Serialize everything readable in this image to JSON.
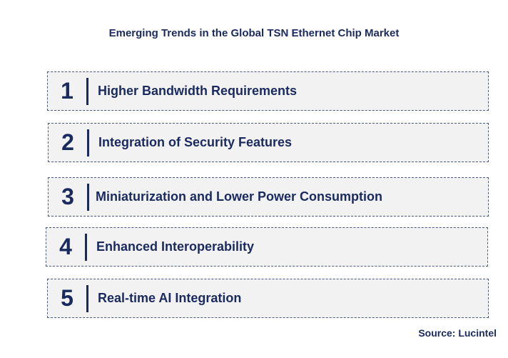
{
  "title": "Emerging Trends in the Global TSN Ethernet Chip Market",
  "trends": [
    {
      "number": "1",
      "label": "Higher Bandwidth Requirements"
    },
    {
      "number": "2",
      "label": "Integration of Security Features"
    },
    {
      "number": "3",
      "label": "Miniaturization and Lower Power Consumption"
    },
    {
      "number": "4",
      "label": "Enhanced Interoperability"
    },
    {
      "number": "5",
      "label": "Real-time AI Integration"
    }
  ],
  "source": "Source: Lucintel",
  "colors": {
    "text": "#1a2a5e",
    "box_background": "#f2f2f2",
    "box_border": "#4a5a80"
  }
}
